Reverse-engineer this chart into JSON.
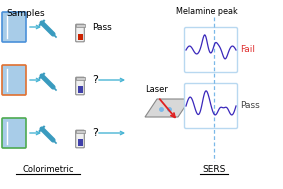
{
  "bg_color": "#ffffff",
  "samples_label": "Samples",
  "colorimetric_label": "Colorimetric",
  "sers_label": "SERS",
  "melamine_label": "Melamine peak",
  "laser_label": "Laser",
  "pass_label1": "Pass",
  "pass_label2": "Pass",
  "fail_label": "Fail",
  "question_marks": [
    "?",
    "?"
  ],
  "sample_box_colors": [
    "#4a90d9",
    "#e07030",
    "#4daa50"
  ],
  "sample_fill": "#a8cce8",
  "arrow_color": "#4ab5d4",
  "tube_red_fill": "#cc2200",
  "tube_dark_fill": "#4040aa",
  "syringe_color": "#3a9bbf",
  "laser_arrow_color": "#e02020",
  "dashed_line_color": "#7ab8e8",
  "spectrum_line_color": "#3a28bb",
  "spectrum_box_color": "#b8d8f0",
  "fail_color": "#e03030",
  "pass_color": "#444444"
}
